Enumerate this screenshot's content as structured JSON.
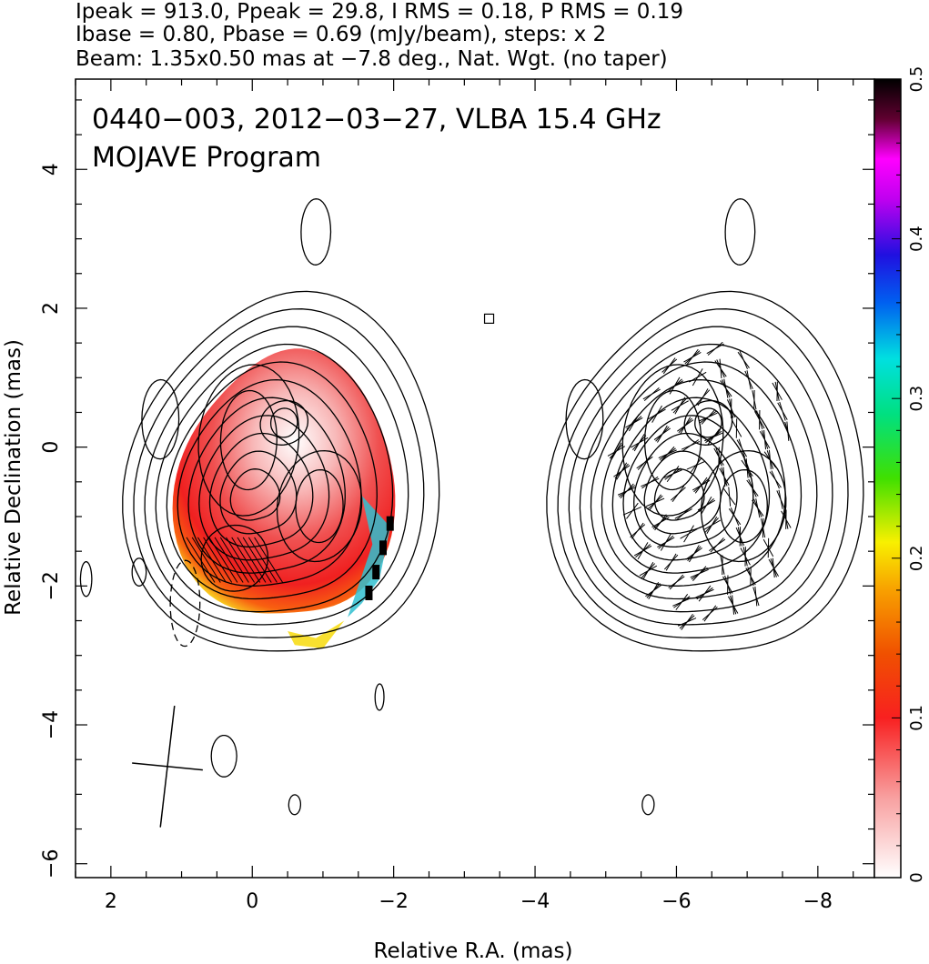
{
  "header": {
    "line1": "Ipeak = 913.0, Ppeak = 29.8, I RMS = 0.18, P RMS = 0.19",
    "line2": "Ibase = 0.80, Pbase = 0.69 (mJy/beam), steps: x 2",
    "line3": "Beam: 1.35x0.50 mas at −7.8 deg., Nat. Wgt. (no taper)"
  },
  "chart_data": {
    "type": "heatmap",
    "title": "0440−003, 2012−03−27, VLBA 15.4 GHz",
    "subtitle": "MOJAVE Program",
    "xlabel": "Relative R.A. (mas)",
    "ylabel": "Relative Declination (mas)",
    "xlim": [
      2.5,
      -8.8
    ],
    "ylim": [
      -6.2,
      5.3
    ],
    "x_ticks": [
      2,
      0,
      -2,
      -4,
      -6,
      -8
    ],
    "x_tick_labels": [
      "2",
      "0",
      "−2",
      "−4",
      "−6",
      "−8"
    ],
    "y_ticks": [
      -6,
      -4,
      -2,
      0,
      2,
      4
    ],
    "y_tick_labels": [
      "−6",
      "−4",
      "−2",
      "0",
      "2",
      "4"
    ],
    "colorbar": {
      "range": [
        0,
        0.5
      ],
      "ticks": [
        0,
        0.1,
        0.2,
        0.3,
        0.4,
        0.5
      ],
      "tick_labels": [
        "0",
        "0.1",
        "0.2",
        "0.3",
        "0.4",
        "0.5"
      ],
      "colormap": "white-red-orange-yellow-green-cyan-blue-magenta-black"
    },
    "panels": [
      {
        "name": "left",
        "content": "total intensity contours with fractional polarization color overlay",
        "center_ra": 0.0
      },
      {
        "name": "right",
        "content": "total intensity contours with EVPA ticks",
        "center_ra": -6.0
      }
    ],
    "contour_steps": "x 2",
    "beam": {
      "major_mas": 1.35,
      "minor_mas": 0.5,
      "pa_deg": -7.8,
      "center": [
        1.2,
        -4.6
      ]
    }
  }
}
